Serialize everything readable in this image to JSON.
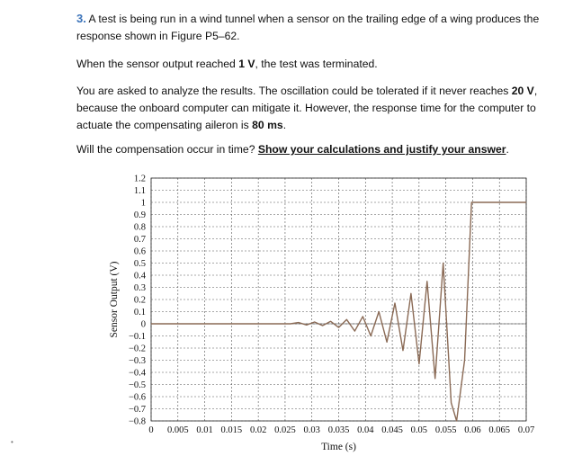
{
  "question": {
    "number": "3.",
    "line1_a": " A test is being run in a wind tunnel when a sensor on the trailing edge of a wing produces the",
    "line1_b": "response shown in Figure P5–62.",
    "p2_a": "When the sensor output reached ",
    "p2_b": "1 V",
    "p2_c": ", the test was terminated.",
    "p3_a": "You are asked to analyze the results. The oscillation could be tolerated if it never reaches ",
    "p3_b": "20 V",
    "p3_c": ", because the onboard computer can mitigate it. However, the response time for the computer to actuate the compensating aileron is ",
    "p3_d": "80 ms",
    "p3_e": ".",
    "p4_a": "Will the compensation occur in time? ",
    "p4_b": "Show your calculations and justify your answer",
    "p4_c": "."
  },
  "chart_data": {
    "type": "line",
    "xlabel": "Time (s)",
    "ylabel": "Sensor Output (V)",
    "xlim": [
      0,
      0.07
    ],
    "ylim": [
      -0.8,
      1.2
    ],
    "x_ticks": [
      0,
      0.005,
      0.01,
      0.015,
      0.02,
      0.025,
      0.03,
      0.035,
      0.04,
      0.045,
      0.05,
      0.055,
      0.06,
      0.065,
      0.07
    ],
    "x_tick_labels": [
      "0",
      "0.005",
      "0.01",
      "0.015",
      "0.02",
      "0.025",
      "0.03",
      "0.035",
      "0.04",
      "0.045",
      "0.05",
      "0.055",
      "0.06",
      "0.065",
      "0.07"
    ],
    "y_ticks": [
      1.2,
      1.1,
      1,
      0.9,
      0.8,
      0.7,
      0.6,
      0.5,
      0.4,
      0.3,
      0.2,
      0.1,
      0,
      -0.1,
      -0.2,
      -0.3,
      -0.4,
      -0.5,
      -0.6,
      -0.7,
      -0.8
    ],
    "y_tick_labels": [
      "1.2",
      "1.1",
      "1",
      "0.9",
      "0.8",
      "0.7",
      "0.6",
      "0.5",
      "0.4",
      "0.3",
      "0.2",
      "0.1",
      "0",
      "−0.1",
      "−0.2",
      "−0.3",
      "−0.4",
      "−0.5",
      "−0.6",
      "−0.7",
      "−0.8"
    ],
    "grid": true,
    "line_color": "#8a6a55",
    "series": [
      {
        "x": [
          0,
          0.026,
          0.0275,
          0.029,
          0.0305,
          0.032,
          0.0335,
          0.035,
          0.0365,
          0.038,
          0.0395,
          0.041,
          0.0425,
          0.044,
          0.0455,
          0.047,
          0.0485,
          0.05,
          0.0515,
          0.053,
          0.0545,
          0.056,
          0.057,
          0.0585,
          0.0598,
          0.07
        ],
        "y": [
          0,
          0,
          0.01,
          -0.01,
          0.015,
          -0.015,
          0.02,
          -0.03,
          0.035,
          -0.06,
          0.06,
          -0.1,
          0.1,
          -0.15,
          0.17,
          -0.22,
          0.25,
          -0.33,
          0.35,
          -0.45,
          0.5,
          -0.65,
          -0.8,
          -0.3,
          1,
          1
        ]
      }
    ]
  }
}
